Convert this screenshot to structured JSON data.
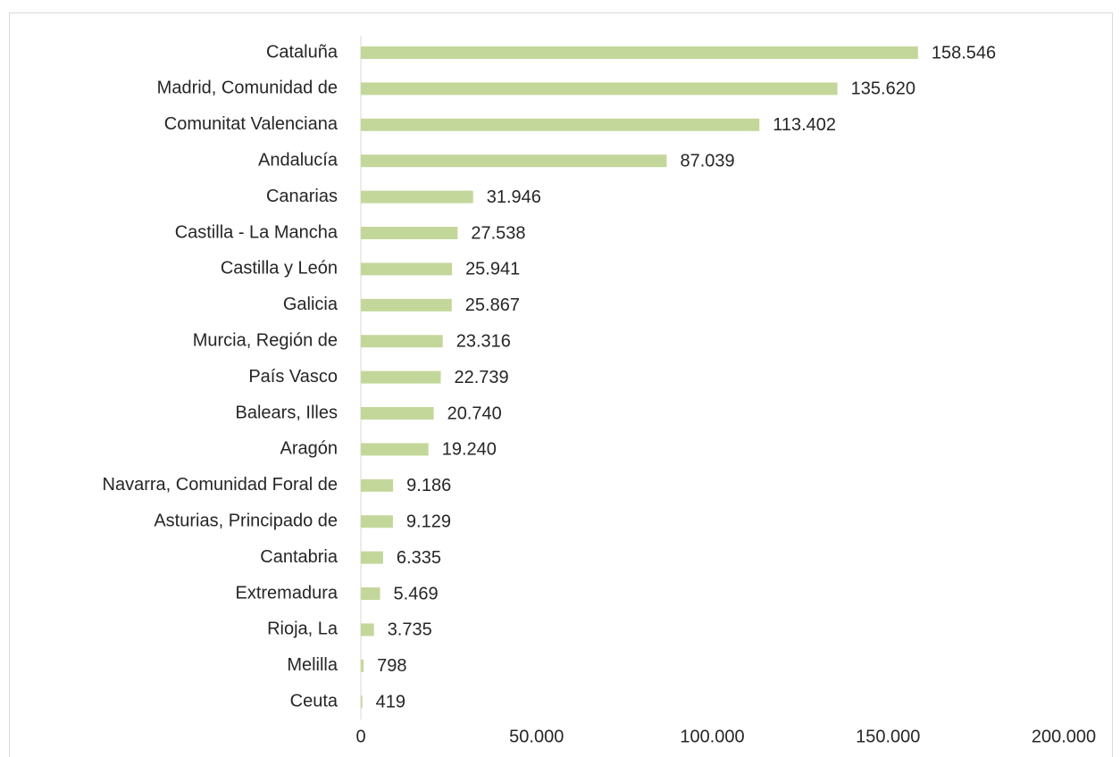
{
  "chart_data": {
    "type": "bar",
    "orientation": "horizontal",
    "categories": [
      "Cataluña",
      "Madrid, Comunidad de",
      "Comunitat Valenciana",
      "Andalucía",
      "Canarias",
      "Castilla - La Mancha",
      "Castilla y León",
      "Galicia",
      "Murcia, Región de",
      "País Vasco",
      "Balears, Illes",
      "Aragón",
      "Navarra, Comunidad Foral de",
      "Asturias, Principado de",
      "Cantabria",
      "Extremadura",
      "Rioja, La",
      "Melilla",
      "Ceuta"
    ],
    "values": [
      158546,
      135620,
      113402,
      87039,
      31946,
      27538,
      25941,
      25867,
      23316,
      22739,
      20740,
      19240,
      9186,
      9129,
      6335,
      5469,
      3735,
      798,
      419
    ],
    "value_labels": [
      "158.546",
      "135.620",
      "113.402",
      "87.039",
      "31.946",
      "27.538",
      "25.941",
      "25.867",
      "23.316",
      "22.739",
      "20.740",
      "19.240",
      "9.186",
      "9.129",
      "6.335",
      "5.469",
      "3.735",
      "798",
      "419"
    ],
    "color": "#c4d79b",
    "xlim": [
      0,
      200000
    ],
    "xticks": [
      0,
      {
        "value": 50000,
        "label": "50.000"
      },
      {
        "value": 100000,
        "label": "100.000"
      },
      {
        "value": 150000,
        "label": "150.000"
      },
      {
        "value": 200000,
        "label": "200.000"
      }
    ],
    "grid": false
  }
}
